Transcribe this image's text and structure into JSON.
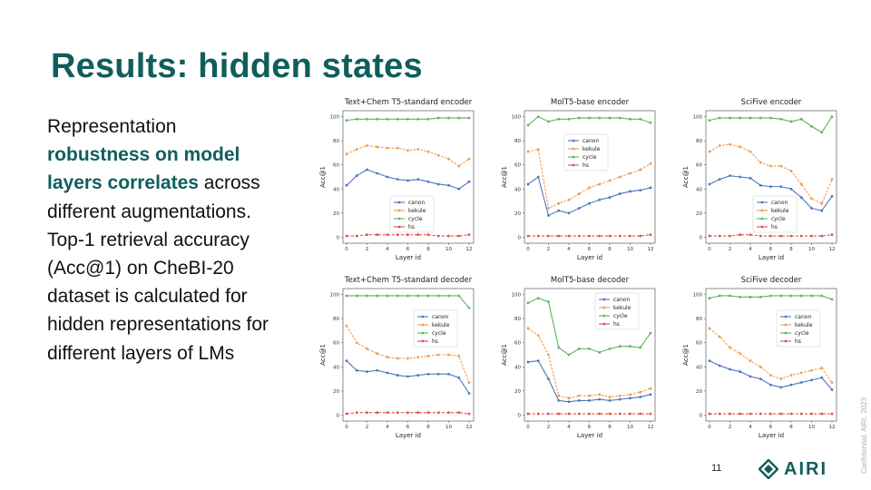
{
  "slide": {
    "title": "Results: hidden states",
    "body_line1": "Representation ",
    "body_highlight": "robustness on model layers correlates",
    "body_rest": " across different augmentations. Top-1 retrieval accuracy (Acc@1) on CheBI-20 dataset is calculated for hidden representations for different layers of LMs",
    "page_number": "11",
    "logo_text": "AIRI",
    "confidential": "Confidential, AIRI. 2023"
  },
  "colors": {
    "accent": "#0f5e5c",
    "canon": "#4c78c0",
    "kekule": "#f39a4a",
    "cycle": "#5fb55f",
    "hs": "#e0504f"
  },
  "chart_data": [
    {
      "type": "line",
      "title": "Text+Chem T5-standard encoder",
      "xlabel": "Layer id",
      "ylabel": "Acc@1",
      "x": [
        0,
        1,
        2,
        3,
        4,
        5,
        6,
        7,
        8,
        9,
        10,
        11,
        12
      ],
      "ylim": [
        0,
        100
      ],
      "xticks": [
        0,
        2,
        4,
        6,
        8,
        10,
        12
      ],
      "yticks": [
        0,
        20,
        40,
        60,
        80,
        100
      ],
      "legend": "lower-center",
      "series": [
        {
          "name": "canon",
          "values": [
            43,
            51,
            56,
            53,
            50,
            48,
            47,
            48,
            46,
            44,
            43,
            40,
            46
          ]
        },
        {
          "name": "kekule",
          "values": [
            69,
            73,
            76,
            75,
            74,
            74,
            72,
            73,
            71,
            68,
            65,
            59,
            65
          ]
        },
        {
          "name": "cycle",
          "values": [
            97,
            98,
            98,
            98,
            98,
            98,
            98,
            98,
            98,
            99,
            99,
            99,
            99
          ]
        },
        {
          "name": "hs",
          "values": [
            1,
            1,
            2,
            2,
            2,
            2,
            2,
            2,
            2,
            1,
            1,
            1,
            2
          ]
        }
      ]
    },
    {
      "type": "line",
      "title": "MolT5-base encoder",
      "xlabel": "Layer id",
      "ylabel": "Acc@1",
      "x": [
        0,
        1,
        2,
        3,
        4,
        5,
        6,
        7,
        8,
        9,
        10,
        11,
        12
      ],
      "ylim": [
        0,
        100
      ],
      "xticks": [
        0,
        2,
        4,
        6,
        8,
        10,
        12
      ],
      "yticks": [
        0,
        20,
        40,
        60,
        80,
        100
      ],
      "legend": "upper-center",
      "series": [
        {
          "name": "canon",
          "values": [
            44,
            50,
            18,
            22,
            20,
            24,
            28,
            31,
            33,
            36,
            38,
            39,
            41
          ]
        },
        {
          "name": "kekule",
          "values": [
            71,
            73,
            24,
            28,
            31,
            36,
            41,
            44,
            47,
            50,
            53,
            56,
            61
          ]
        },
        {
          "name": "cycle",
          "values": [
            93,
            100,
            96,
            98,
            98,
            99,
            99,
            99,
            99,
            99,
            98,
            98,
            95
          ]
        },
        {
          "name": "hs",
          "values": [
            1,
            1,
            1,
            1,
            1,
            1,
            1,
            1,
            1,
            1,
            1,
            1,
            2
          ]
        }
      ]
    },
    {
      "type": "line",
      "title": "SciFive encoder",
      "xlabel": "Layer id",
      "ylabel": "Acc@1",
      "x": [
        0,
        1,
        2,
        3,
        4,
        5,
        6,
        7,
        8,
        9,
        10,
        11,
        12
      ],
      "ylim": [
        0,
        100
      ],
      "xticks": [
        0,
        2,
        4,
        6,
        8,
        10,
        12
      ],
      "yticks": [
        0,
        20,
        40,
        60,
        80,
        100
      ],
      "legend": "lower-center",
      "series": [
        {
          "name": "canon",
          "values": [
            44,
            48,
            51,
            50,
            49,
            43,
            42,
            42,
            40,
            33,
            24,
            22,
            34
          ]
        },
        {
          "name": "kekule",
          "values": [
            71,
            76,
            77,
            75,
            71,
            62,
            59,
            59,
            55,
            44,
            32,
            28,
            48
          ]
        },
        {
          "name": "cycle",
          "values": [
            97,
            99,
            99,
            99,
            99,
            99,
            99,
            98,
            96,
            98,
            92,
            87,
            100
          ]
        },
        {
          "name": "hs",
          "values": [
            1,
            1,
            1,
            2,
            2,
            1,
            1,
            1,
            1,
            1,
            1,
            1,
            2
          ]
        }
      ]
    },
    {
      "type": "line",
      "title": "Text+Chem T5-standard decoder",
      "xlabel": "Layer id",
      "ylabel": "Acc@1",
      "x": [
        0,
        1,
        2,
        3,
        4,
        5,
        6,
        7,
        8,
        9,
        10,
        11,
        12
      ],
      "ylim": [
        0,
        100
      ],
      "xticks": [
        0,
        2,
        4,
        6,
        8,
        10,
        12
      ],
      "yticks": [
        0,
        20,
        40,
        60,
        80,
        100
      ],
      "legend": "middle-right",
      "series": [
        {
          "name": "canon",
          "values": [
            45,
            37,
            36,
            37,
            35,
            33,
            32,
            33,
            34,
            34,
            34,
            31,
            18
          ]
        },
        {
          "name": "kekule",
          "values": [
            74,
            60,
            55,
            51,
            48,
            47,
            47,
            48,
            49,
            50,
            50,
            49,
            27
          ]
        },
        {
          "name": "cycle",
          "values": [
            99,
            99,
            99,
            99,
            99,
            99,
            99,
            99,
            99,
            99,
            99,
            99,
            89
          ]
        },
        {
          "name": "hs",
          "values": [
            1,
            2,
            2,
            2,
            2,
            2,
            2,
            2,
            2,
            2,
            2,
            2,
            1
          ]
        }
      ]
    },
    {
      "type": "line",
      "title": "MolT5-base decoder",
      "xlabel": "Layer id",
      "ylabel": "Acc@1",
      "x": [
        0,
        1,
        2,
        3,
        4,
        5,
        6,
        7,
        8,
        9,
        10,
        11,
        12
      ],
      "ylim": [
        0,
        100
      ],
      "xticks": [
        0,
        2,
        4,
        6,
        8,
        10,
        12
      ],
      "yticks": [
        0,
        20,
        40,
        60,
        80,
        100
      ],
      "legend": "upper-right",
      "series": [
        {
          "name": "canon",
          "values": [
            44,
            45,
            30,
            12,
            11,
            12,
            12,
            13,
            12,
            13,
            14,
            15,
            17
          ]
        },
        {
          "name": "kekule",
          "values": [
            72,
            66,
            50,
            16,
            14,
            16,
            16,
            17,
            15,
            16,
            17,
            19,
            22
          ]
        },
        {
          "name": "cycle",
          "values": [
            93,
            97,
            94,
            56,
            50,
            55,
            55,
            52,
            55,
            57,
            57,
            56,
            68
          ]
        },
        {
          "name": "hs",
          "values": [
            1,
            1,
            1,
            1,
            1,
            1,
            1,
            1,
            1,
            1,
            1,
            1,
            1
          ]
        }
      ]
    },
    {
      "type": "line",
      "title": "SciFive decoder",
      "xlabel": "Layer id",
      "ylabel": "Acc@1",
      "x": [
        0,
        1,
        2,
        3,
        4,
        5,
        6,
        7,
        8,
        9,
        10,
        11,
        12
      ],
      "ylim": [
        0,
        100
      ],
      "xticks": [
        0,
        2,
        4,
        6,
        8,
        10,
        12
      ],
      "yticks": [
        0,
        20,
        40,
        60,
        80,
        100
      ],
      "legend": "middle-right",
      "series": [
        {
          "name": "canon",
          "values": [
            45,
            41,
            38,
            36,
            32,
            30,
            25,
            23,
            25,
            27,
            29,
            31,
            21
          ]
        },
        {
          "name": "kekule",
          "values": [
            72,
            65,
            56,
            51,
            45,
            40,
            33,
            30,
            33,
            35,
            37,
            39,
            27
          ]
        },
        {
          "name": "cycle",
          "values": [
            97,
            99,
            99,
            98,
            98,
            98,
            99,
            99,
            99,
            99,
            99,
            99,
            96
          ]
        },
        {
          "name": "hs",
          "values": [
            1,
            1,
            1,
            1,
            1,
            1,
            1,
            1,
            1,
            1,
            1,
            1,
            1
          ]
        }
      ]
    }
  ]
}
